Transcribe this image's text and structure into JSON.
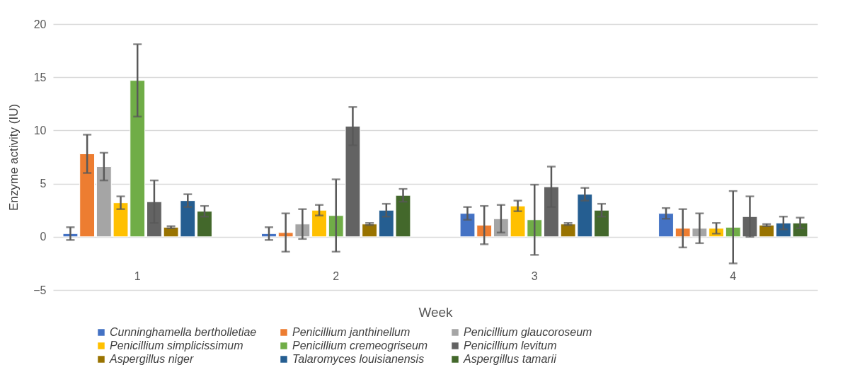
{
  "chart_data": {
    "type": "bar",
    "xlabel": "Week",
    "ylabel": "Enzyme activity (IU)",
    "categories": [
      "1",
      "2",
      "3",
      "4"
    ],
    "ylim": [
      -5,
      20
    ],
    "yticks": [
      -5,
      0,
      5,
      10,
      15,
      20
    ],
    "grid": "y",
    "legend": "bottom",
    "series": [
      {
        "name": "Cunninghamella bertholletiae",
        "color": "#4472c4",
        "values": [
          0.3,
          0.3,
          2.2,
          2.2
        ],
        "errors": [
          0.6,
          0.6,
          0.6,
          0.5
        ]
      },
      {
        "name": "Penicillium janthinellum",
        "color": "#ed7d31",
        "values": [
          7.8,
          0.4,
          1.1,
          0.8
        ],
        "errors": [
          1.8,
          1.8,
          1.8,
          1.8
        ]
      },
      {
        "name": "Penicillium glaucoroseum",
        "color": "#a5a5a5",
        "values": [
          6.6,
          1.2,
          1.7,
          0.8
        ],
        "errors": [
          1.3,
          1.4,
          1.3,
          1.4
        ]
      },
      {
        "name": "Penicillium simplicissimum",
        "color": "#ffc000",
        "values": [
          3.2,
          2.5,
          2.9,
          0.8
        ],
        "errors": [
          0.6,
          0.5,
          0.5,
          0.5
        ]
      },
      {
        "name": "Penicillium cremeogriseum",
        "color": "#70ad47",
        "values": [
          14.7,
          2.0,
          1.6,
          0.9
        ],
        "errors": [
          3.4,
          3.4,
          3.3,
          3.4
        ]
      },
      {
        "name": "Penicillium levitum",
        "color": "#636363",
        "values": [
          3.3,
          10.4,
          4.7,
          1.9
        ],
        "errors": [
          2.0,
          1.8,
          1.9,
          1.9
        ]
      },
      {
        "name": "Aspergillus niger",
        "color": "#997300",
        "values": [
          0.9,
          1.2,
          1.2,
          1.1
        ],
        "errors": [
          0.1,
          0.1,
          0.1,
          0.1
        ]
      },
      {
        "name": "Talaromyces louisianensis",
        "color": "#255e91",
        "values": [
          3.4,
          2.5,
          4.0,
          1.3
        ],
        "errors": [
          0.6,
          0.6,
          0.6,
          0.6
        ]
      },
      {
        "name": "Aspergillus tamarii",
        "color": "#43682b",
        "values": [
          2.4,
          3.9,
          2.5,
          1.3
        ],
        "errors": [
          0.5,
          0.6,
          0.6,
          0.5
        ]
      }
    ]
  }
}
